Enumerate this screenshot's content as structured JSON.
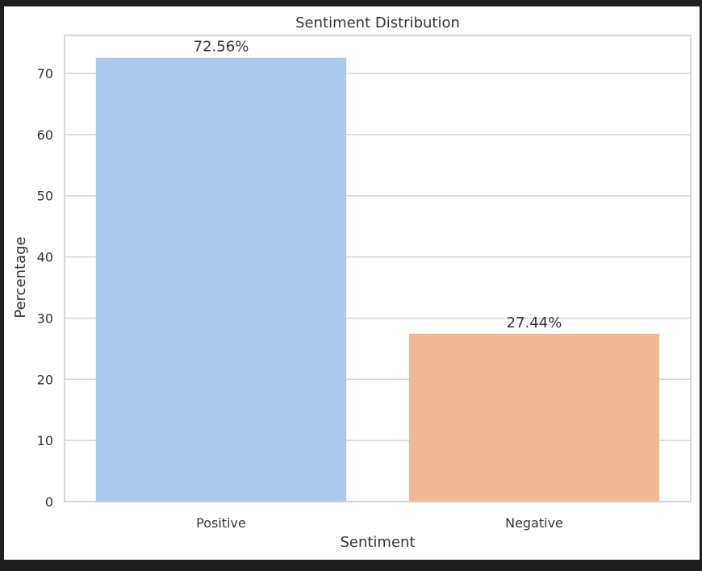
{
  "chart_data": {
    "type": "bar",
    "title": "Sentiment Distribution",
    "xlabel": "Sentiment",
    "ylabel": "Percentage",
    "categories": [
      "Positive",
      "Negative"
    ],
    "values": [
      72.56,
      27.44
    ],
    "data_labels": [
      "72.56%",
      "27.44%"
    ],
    "colors": [
      "#abc9ee",
      "#f1b893"
    ],
    "ylim": [
      0,
      76.2
    ],
    "yticks": [
      0,
      10,
      20,
      30,
      40,
      50,
      60,
      70
    ],
    "grid": "horizontal",
    "legend": "none"
  }
}
